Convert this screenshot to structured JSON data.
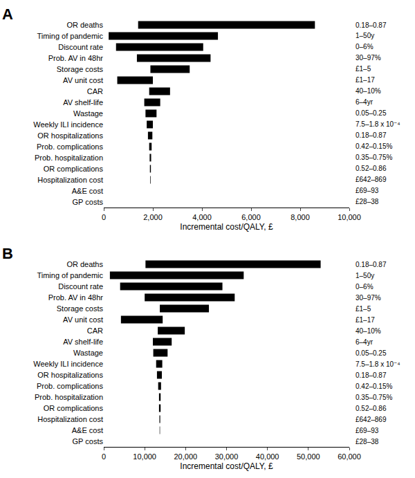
{
  "chart_data": [
    {
      "type": "bar",
      "title": "A",
      "orientation": "horizontal",
      "color": "#000000",
      "grid": false,
      "x_label": "Incremental cost/QALY, £",
      "categories": [
        "OR deaths",
        "Timing of pandemic",
        "Discount rate",
        "Prob. AV in 48hr",
        "Storage costs",
        "AV unit cost",
        "CAR",
        "AV shelf-life",
        "Wastage",
        "Weekly ILI incidence",
        "OR hospitalizations",
        "Prob. complications",
        "Prob. hospitalization",
        "OR complications",
        "Hospitalization cost",
        "A&E cost",
        "GP costs"
      ],
      "low": [
        1400,
        200,
        500,
        1350,
        1900,
        550,
        1850,
        1650,
        1700,
        1750,
        1800,
        1850,
        1870,
        1880,
        1890,
        1895,
        1897
      ],
      "high": [
        8600,
        4650,
        4050,
        4350,
        3500,
        2000,
        2700,
        2300,
        2150,
        2000,
        1980,
        1950,
        1930,
        1920,
        1910,
        1905,
        1903
      ],
      "range_labels": [
        "0.18–0.87",
        "1–50y",
        "0–6%",
        "30–97%",
        "£1–5",
        "£1–17",
        "40–10%",
        "6–4yr",
        "0.05–0.25",
        "7.5–1.8 x 10⁻⁴",
        "0.18–0.87",
        "0.42–0.15%",
        "0.35–0.75%",
        "0.52–0.86",
        "£642–869",
        "£69–93",
        "£28–38"
      ],
      "xlim": [
        0,
        10000
      ],
      "xticks": [
        0,
        {
          "value": 2000,
          "label": "2,000"
        },
        {
          "value": 4000,
          "label": "4,000"
        },
        {
          "value": 6000,
          "label": "6,000"
        },
        {
          "value": 8000,
          "label": "8,000"
        },
        {
          "value": 10000,
          "label": "10,000"
        }
      ]
    },
    {
      "type": "bar",
      "title": "B",
      "orientation": "horizontal",
      "color": "#000000",
      "grid": false,
      "x_label": "Incremental cost/QALY, £",
      "categories": [
        "OR deaths",
        "Timing of pandemic",
        "Discount rate",
        "Prob. AV in 48hr",
        "Storage costs",
        "AV unit cost",
        "CAR",
        "AV shelf-life",
        "Wastage",
        "Weekly ILI incidence",
        "OR hospitalizations",
        "Prob. complications",
        "Prob. hospitalization",
        "OR complications",
        "Hospitalization cost",
        "A&E cost",
        "GP costs"
      ],
      "low": [
        10200,
        1500,
        4000,
        10000,
        13700,
        4200,
        13200,
        12000,
        12100,
        12800,
        13000,
        13300,
        13500,
        13500,
        13600,
        13650,
        13680
      ],
      "high": [
        53000,
        34200,
        29000,
        32000,
        25700,
        14400,
        19800,
        16600,
        15600,
        14300,
        14200,
        14000,
        13900,
        13900,
        13800,
        13750,
        13720
      ],
      "range_labels": [
        "0.18–0.87",
        "1–50y",
        "0–6%",
        "30–97%",
        "£1–5",
        "£1–17",
        "40–10%",
        "6–4yr",
        "0.05–0.25",
        "7.5–1.8 x 10⁻⁴",
        "0.18–0.87",
        "0.42–0.15%",
        "0.35–0.75%",
        "0.52–0.86",
        "£642–869",
        "£69–93",
        "£28–38"
      ],
      "xlim": [
        0,
        60000
      ],
      "xticks": [
        0,
        {
          "value": 10000,
          "label": "10,000"
        },
        {
          "value": 20000,
          "label": "20,000"
        },
        {
          "value": 30000,
          "label": "30,000"
        },
        {
          "value": 40000,
          "label": "40,000"
        },
        {
          "value": 50000,
          "label": "50,000"
        },
        {
          "value": 60000,
          "label": "60,000"
        }
      ]
    }
  ]
}
